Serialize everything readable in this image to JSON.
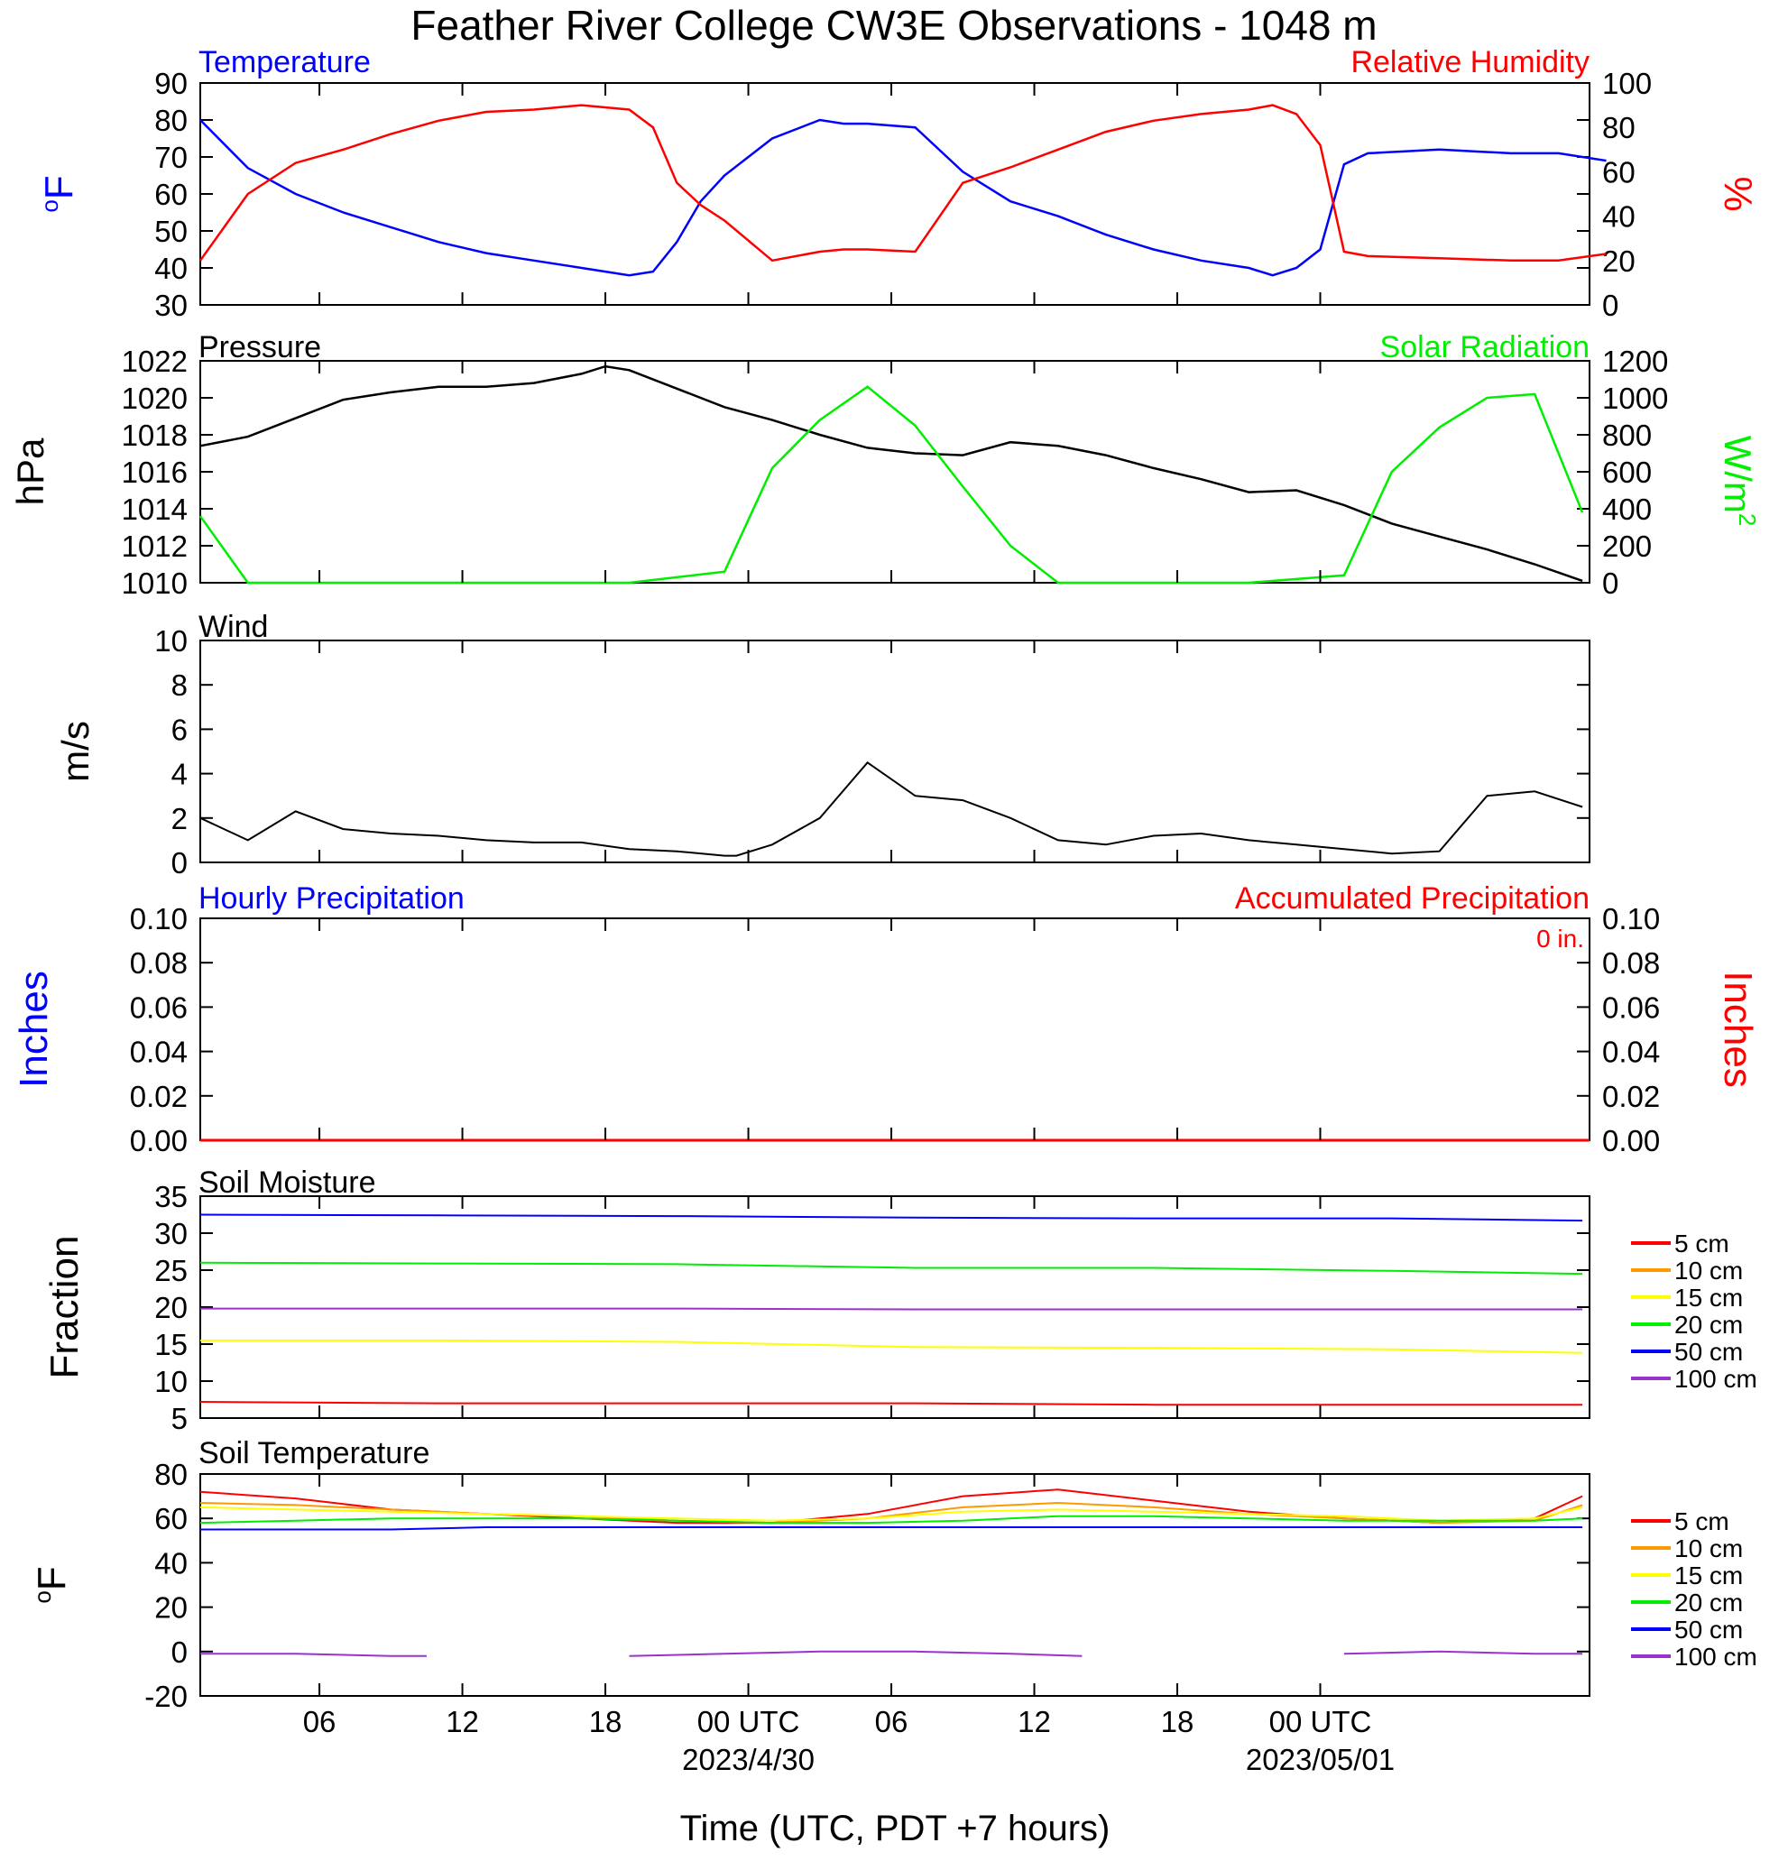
{
  "title": "Feather River College CW3E Observations - 1048 m",
  "xaxis": {
    "title": "Time (UTC, PDT +7 hours)",
    "ticks": [
      "06",
      "12",
      "18",
      "00 UTC",
      "06",
      "12",
      "18",
      "00 UTC"
    ],
    "dates": [
      "2023/4/30",
      "2023/05/01"
    ]
  },
  "colors": {
    "temperature": "#0000ff",
    "humidity": "#ff0000",
    "pressure": "#000000",
    "solar": "#00ee00",
    "wind": "#000000",
    "barb": "#ff0000",
    "hourly_precip": "#0000ff",
    "accum_precip": "#ff0000",
    "d5": "#ff0000",
    "d10": "#ff9900",
    "d15": "#ffff00",
    "d20": "#00ee00",
    "d50": "#0000ff",
    "d100": "#9933cc"
  },
  "panels": {
    "temp_rh": {
      "left_label": "Temperature",
      "right_label": "Relative Humidity",
      "left_unit_sup": "o",
      "left_unit": "F",
      "right_unit": "%",
      "left_ticks": [
        "30",
        "40",
        "50",
        "60",
        "70",
        "80",
        "90"
      ],
      "right_ticks": [
        "0",
        "20",
        "40",
        "60",
        "80",
        "100"
      ]
    },
    "pressure": {
      "left_label": "Pressure",
      "right_label": "Solar Radiation",
      "left_unit": "hPa",
      "right_unit": "W/m",
      "right_unit_sup": "2",
      "left_ticks": [
        "1010",
        "1012",
        "1014",
        "1016",
        "1018",
        "1020",
        "1022"
      ],
      "right_ticks": [
        "0",
        "200",
        "400",
        "600",
        "800",
        "1000",
        "1200"
      ]
    },
    "wind": {
      "left_label": "Wind",
      "left_unit": "m/s",
      "left_ticks": [
        "0",
        "2",
        "4",
        "6",
        "8",
        "10"
      ]
    },
    "precip": {
      "left_label": "Hourly Precipitation",
      "right_label": "Accumulated Precipitation",
      "total": "0 in.",
      "left_unit": "Inches",
      "right_unit": "Inches",
      "left_ticks": [
        "0.00",
        "0.02",
        "0.04",
        "0.06",
        "0.08",
        "0.10"
      ],
      "right_ticks": [
        "0.00",
        "0.02",
        "0.04",
        "0.06",
        "0.08",
        "0.10"
      ]
    },
    "soil_moisture": {
      "left_label": "Soil Moisture",
      "left_unit": "Fraction",
      "left_ticks": [
        "5",
        "10",
        "15",
        "20",
        "25",
        "30",
        "35"
      ],
      "legend": [
        "5 cm",
        "10 cm",
        "15 cm",
        "20 cm",
        "50 cm",
        "100 cm"
      ]
    },
    "soil_temp": {
      "left_label": "Soil Temperature",
      "left_unit_sup": "o",
      "left_unit": "F",
      "left_ticks": [
        "-20",
        "0",
        "20",
        "40",
        "60",
        "80"
      ],
      "legend": [
        "5 cm",
        "10 cm",
        "15 cm",
        "20 cm",
        "50 cm",
        "100 cm"
      ]
    }
  },
  "chart_data": [
    {
      "type": "line",
      "title": "Temperature / Relative Humidity",
      "x": [
        0,
        2,
        4,
        6,
        8,
        10,
        12,
        14,
        16,
        18,
        19,
        20,
        21,
        22,
        24,
        26,
        27,
        28,
        30,
        32,
        34,
        36,
        38,
        40,
        42,
        44,
        45,
        46,
        47,
        48
      ],
      "x_unit": "hours since 2023-04-29 01 UTC",
      "series": [
        {
          "name": "Temperature",
          "unit": "F",
          "ylim": [
            30,
            90
          ],
          "values": [
            80,
            67,
            60,
            55,
            51,
            47,
            44,
            42,
            40,
            38,
            39,
            47,
            58,
            65,
            75,
            80,
            79,
            79,
            78,
            66,
            58,
            54,
            49,
            45,
            42,
            40,
            38,
            40,
            45,
            68
          ]
        },
        {
          "name": "Relative Humidity",
          "unit": "%",
          "ylim": [
            0,
            100
          ],
          "values": [
            20,
            50,
            64,
            70,
            77,
            83,
            87,
            88,
            90,
            88,
            80,
            55,
            45,
            38,
            20,
            24,
            25,
            25,
            24,
            55,
            62,
            70,
            78,
            83,
            86,
            88,
            90,
            86,
            72,
            24
          ]
        }
      ],
      "tail": {
        "x": [
          49,
          52,
          55,
          57,
          59
        ],
        "temperature": [
          71,
          72,
          71,
          71,
          69
        ],
        "humidity": [
          22,
          21,
          20,
          20,
          23
        ]
      }
    },
    {
      "type": "line",
      "title": "Pressure / Solar Radiation",
      "x": [
        0,
        2,
        4,
        6,
        8,
        10,
        12,
        14,
        16,
        17,
        18,
        20,
        22,
        24,
        26,
        28,
        30,
        32,
        34,
        36,
        38,
        40,
        42,
        44,
        46,
        48,
        50,
        52,
        54,
        56,
        58
      ],
      "x_unit": "hours since 2023-04-29 01 UTC",
      "series": [
        {
          "name": "Pressure",
          "unit": "hPa",
          "ylim": [
            1010,
            1022
          ],
          "values": [
            1017.4,
            1017.9,
            1018.9,
            1019.9,
            1020.3,
            1020.6,
            1020.6,
            1020.8,
            1021.3,
            1021.7,
            1021.5,
            1020.5,
            1019.5,
            1018.8,
            1018.0,
            1017.3,
            1017.0,
            1016.9,
            1017.6,
            1017.4,
            1016.9,
            1016.2,
            1015.6,
            1014.9,
            1015.0,
            1014.2,
            1013.2,
            1012.5,
            1011.8,
            1011.0,
            1010.1
          ]
        },
        {
          "name": "Solar Radiation",
          "unit": "W/m2",
          "ylim": [
            0,
            1200
          ],
          "values": [
            360,
            0,
            0,
            0,
            0,
            0,
            0,
            0,
            0,
            0,
            0,
            30,
            60,
            620,
            880,
            1060,
            850,
            520,
            200,
            0,
            0,
            0,
            0,
            0,
            20,
            40,
            600,
            840,
            1000,
            1020,
            380
          ]
        }
      ]
    },
    {
      "type": "line",
      "title": "Wind",
      "unit": "m/s",
      "ylim": [
        0,
        10
      ],
      "x": [
        0,
        2,
        4,
        6,
        8,
        10,
        12,
        14,
        16,
        18,
        20,
        22,
        22.5,
        24,
        26,
        28,
        30,
        32,
        34,
        36,
        38,
        40,
        42,
        44,
        46,
        47,
        48,
        50,
        52,
        54,
        56,
        58
      ],
      "x_unit": "hours since 2023-04-29 01 UTC",
      "series": [
        {
          "name": "Wind Speed",
          "values": [
            2.0,
            1.0,
            2.3,
            1.5,
            1.3,
            1.2,
            1.0,
            0.9,
            0.9,
            0.6,
            0.5,
            0.3,
            0.3,
            0.8,
            2.0,
            4.5,
            3.0,
            2.8,
            2.0,
            1.0,
            0.8,
            1.2,
            1.3,
            1.0,
            0.8,
            0.7,
            0.6,
            0.4,
            0.5,
            3.0,
            3.2,
            2.5
          ]
        }
      ]
    },
    {
      "type": "bar",
      "title": "Hourly / Accumulated Precipitation",
      "unit": "Inches",
      "ylim": [
        0,
        0.1
      ],
      "series": [
        {
          "name": "Hourly Precipitation",
          "values": [
            0
          ]
        },
        {
          "name": "Accumulated Precipitation",
          "values": [
            0
          ]
        }
      ]
    },
    {
      "type": "line",
      "title": "Soil Moisture",
      "unit": "Fraction",
      "ylim": [
        5,
        35
      ],
      "x": [
        0,
        10,
        20,
        30,
        40,
        50,
        58
      ],
      "x_unit": "hours since 2023-04-29 01 UTC",
      "series": [
        {
          "name": "5 cm",
          "values": [
            7.2,
            7.0,
            7.0,
            7.0,
            6.8,
            6.8,
            6.8
          ]
        },
        {
          "name": "15 cm",
          "values": [
            15.5,
            15.5,
            15.3,
            14.6,
            14.5,
            14.3,
            13.8
          ]
        },
        {
          "name": "20 cm",
          "values": [
            26.0,
            25.9,
            25.8,
            25.3,
            25.3,
            24.9,
            24.5
          ]
        },
        {
          "name": "50 cm",
          "values": [
            32.5,
            32.4,
            32.3,
            32.1,
            32.0,
            32.0,
            31.7
          ]
        },
        {
          "name": "100 cm",
          "values": [
            19.8,
            19.8,
            19.8,
            19.7,
            19.7,
            19.7,
            19.7
          ]
        }
      ]
    },
    {
      "type": "line",
      "title": "Soil Temperature",
      "unit": "F",
      "ylim": [
        -20,
        80
      ],
      "x": [
        0,
        4,
        8,
        12,
        16,
        20,
        24,
        28,
        32,
        36,
        40,
        44,
        48,
        52,
        56,
        58
      ],
      "x_unit": "hours since 2023-04-29 01 UTC",
      "series": [
        {
          "name": "5 cm",
          "values": [
            72,
            69,
            64,
            62,
            60,
            58,
            58,
            62,
            70,
            73,
            68,
            63,
            60,
            58,
            60,
            70
          ]
        },
        {
          "name": "10 cm",
          "values": [
            67,
            66,
            64,
            62,
            61,
            59,
            58,
            60,
            65,
            67,
            65,
            62,
            60,
            58,
            59,
            66
          ]
        },
        {
          "name": "15 cm",
          "values": [
            65,
            64,
            63,
            62,
            61,
            60,
            59,
            60,
            63,
            64,
            63,
            62,
            61,
            59,
            60,
            65
          ]
        },
        {
          "name": "20 cm",
          "values": [
            58,
            59,
            60,
            60,
            60,
            59,
            58,
            58,
            59,
            61,
            61,
            60,
            59,
            59,
            59,
            60
          ]
        },
        {
          "name": "50 cm",
          "values": [
            55,
            55,
            55,
            56,
            56,
            56,
            56,
            56,
            56,
            56,
            56,
            56,
            56,
            56,
            56,
            56
          ]
        },
        {
          "name": "100 cm",
          "segments": [
            {
              "x": [
                0,
                4,
                8,
                9.5
              ],
              "values": [
                -1,
                -1,
                -2,
                -2
              ]
            },
            {
              "x": [
                18,
                22,
                26,
                30,
                34,
                37
              ],
              "values": [
                -2,
                -1,
                0,
                0,
                -1,
                -2
              ]
            },
            {
              "x": [
                48,
                52,
                56,
                58
              ],
              "values": [
                -1,
                0,
                -1,
                -1
              ]
            }
          ]
        }
      ]
    }
  ]
}
